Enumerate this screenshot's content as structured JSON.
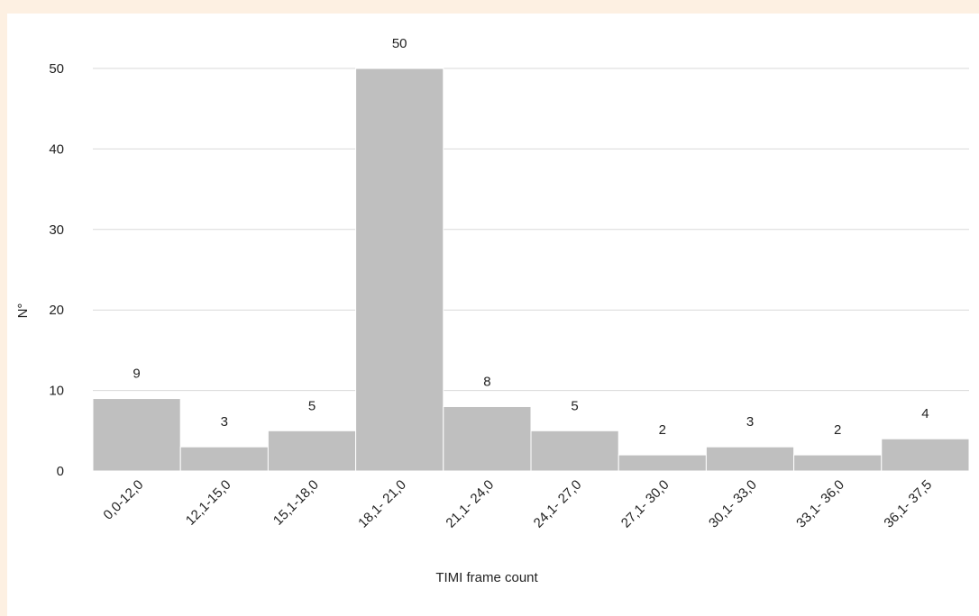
{
  "chart_data": {
    "type": "bar",
    "title": "",
    "xlabel": "TIMI frame count",
    "ylabel": "N°",
    "categories": [
      "0,0-12,0",
      "12,1-15,0",
      "15,1-18,0",
      "18,1- 21,0",
      "21,1- 24,0",
      "24,1- 27,0",
      "27,1- 30,0",
      "30,1- 33,0",
      "33,1- 36,0",
      "36,1- 37,5"
    ],
    "values": [
      9,
      3,
      5,
      50,
      8,
      5,
      2,
      3,
      2,
      4
    ],
    "ylim": [
      0,
      50
    ],
    "yticks": [
      0,
      10,
      20,
      30,
      40,
      50
    ],
    "grid": true,
    "bar_color": "#bfbfbf",
    "background_color": "#fdf0e2"
  }
}
